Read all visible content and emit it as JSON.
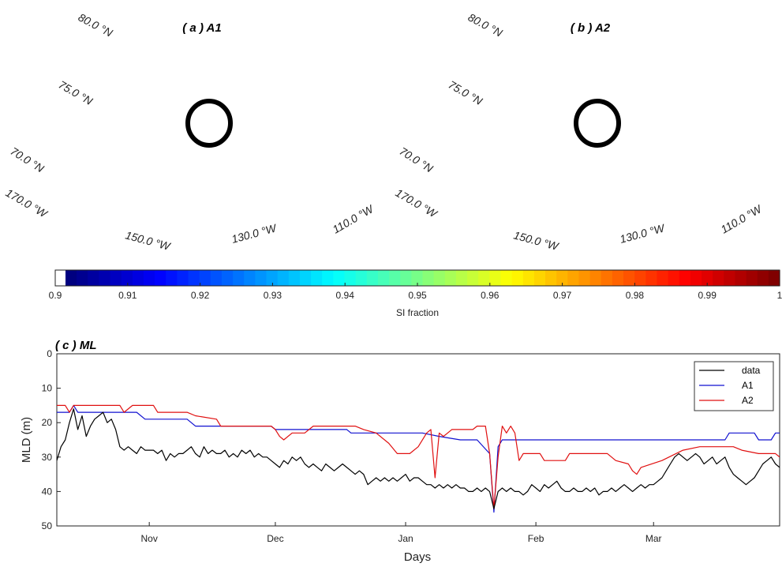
{
  "map_a": {
    "title": "( a ) A1",
    "lat_labels": [
      "80.0 °N",
      "75.0 °N",
      "70.0 °N"
    ],
    "lon_labels": [
      "170.0 °W",
      "150.0 °W",
      "130.0 °W",
      "110.0 °W"
    ]
  },
  "map_b": {
    "title": "( b ) A2",
    "lat_labels": [
      "80.0 °N",
      "75.0 °N",
      "70.0 °N"
    ],
    "lon_labels": [
      "170.0 °W",
      "150.0 °W",
      "130.0 °W",
      "110.0 °W"
    ]
  },
  "colorbar": {
    "label": "SI fraction",
    "range": [
      0.9,
      1.0
    ],
    "ticks": [
      "0.9",
      "0.91",
      "0.92",
      "0.93",
      "0.94",
      "0.95",
      "0.96",
      "0.97",
      "0.98",
      "0.99",
      "1"
    ],
    "colormap": "jet"
  },
  "chart_data": {
    "type": "line",
    "title": "( c ) ML",
    "xlabel": "Days",
    "ylabel": "MLD (m)",
    "ylim": [
      0,
      50
    ],
    "y_reversed": true,
    "yticks": [
      0,
      10,
      20,
      30,
      40,
      50
    ],
    "xticks": [
      "Nov",
      "Dec",
      "Jan",
      "Feb",
      "Mar"
    ],
    "xtick_days": [
      1,
      31,
      62,
      93,
      121
    ],
    "xlim_days": [
      -21,
      151
    ],
    "legend_position": "top-right",
    "series": [
      {
        "name": "data",
        "color": "#000000",
        "points": [
          [
            -21,
            31
          ],
          [
            -20,
            27
          ],
          [
            -19,
            25
          ],
          [
            -18,
            20
          ],
          [
            -17,
            16
          ],
          [
            -16,
            22
          ],
          [
            -15,
            18
          ],
          [
            -14,
            24
          ],
          [
            -13,
            21
          ],
          [
            -12,
            19
          ],
          [
            -11,
            18
          ],
          [
            -10,
            17
          ],
          [
            -9,
            20
          ],
          [
            -8,
            19
          ],
          [
            -7,
            22
          ],
          [
            -6,
            27
          ],
          [
            -5,
            28
          ],
          [
            -4,
            27
          ],
          [
            -3,
            28
          ],
          [
            -2,
            29
          ],
          [
            -1,
            27
          ],
          [
            0,
            28
          ],
          [
            1,
            28
          ],
          [
            2,
            28
          ],
          [
            3,
            29
          ],
          [
            4,
            28
          ],
          [
            5,
            31
          ],
          [
            6,
            29
          ],
          [
            7,
            30
          ],
          [
            8,
            29
          ],
          [
            9,
            29
          ],
          [
            10,
            28
          ],
          [
            11,
            27
          ],
          [
            12,
            29
          ],
          [
            13,
            30
          ],
          [
            14,
            27
          ],
          [
            15,
            29
          ],
          [
            16,
            28
          ],
          [
            17,
            29
          ],
          [
            18,
            29
          ],
          [
            19,
            28
          ],
          [
            20,
            30
          ],
          [
            21,
            29
          ],
          [
            22,
            30
          ],
          [
            23,
            28
          ],
          [
            24,
            29
          ],
          [
            25,
            28
          ],
          [
            26,
            30
          ],
          [
            27,
            29
          ],
          [
            28,
            30
          ],
          [
            29,
            30
          ],
          [
            30,
            31
          ],
          [
            31,
            32
          ],
          [
            32,
            33
          ],
          [
            33,
            31
          ],
          [
            34,
            32
          ],
          [
            35,
            30
          ],
          [
            36,
            31
          ],
          [
            37,
            30
          ],
          [
            38,
            32
          ],
          [
            39,
            33
          ],
          [
            40,
            32
          ],
          [
            41,
            33
          ],
          [
            42,
            34
          ],
          [
            43,
            32
          ],
          [
            44,
            33
          ],
          [
            45,
            34
          ],
          [
            46,
            33
          ],
          [
            47,
            32
          ],
          [
            48,
            33
          ],
          [
            49,
            34
          ],
          [
            50,
            35
          ],
          [
            51,
            34
          ],
          [
            52,
            35
          ],
          [
            53,
            38
          ],
          [
            54,
            37
          ],
          [
            55,
            36
          ],
          [
            56,
            37
          ],
          [
            57,
            36
          ],
          [
            58,
            37
          ],
          [
            59,
            36
          ],
          [
            60,
            37
          ],
          [
            61,
            36
          ],
          [
            62,
            35
          ],
          [
            63,
            37
          ],
          [
            64,
            36
          ],
          [
            65,
            36
          ],
          [
            66,
            37
          ],
          [
            67,
            38
          ],
          [
            68,
            38
          ],
          [
            69,
            39
          ],
          [
            70,
            38
          ],
          [
            71,
            39
          ],
          [
            72,
            38
          ],
          [
            73,
            39
          ],
          [
            74,
            38
          ],
          [
            75,
            39
          ],
          [
            76,
            39
          ],
          [
            77,
            40
          ],
          [
            78,
            40
          ],
          [
            79,
            39
          ],
          [
            80,
            40
          ],
          [
            81,
            39
          ],
          [
            82,
            40
          ],
          [
            83,
            45
          ],
          [
            84,
            40
          ],
          [
            85,
            39
          ],
          [
            86,
            40
          ],
          [
            87,
            39
          ],
          [
            88,
            40
          ],
          [
            89,
            40
          ],
          [
            90,
            41
          ],
          [
            91,
            40
          ],
          [
            92,
            38
          ],
          [
            93,
            39
          ],
          [
            94,
            40
          ],
          [
            95,
            38
          ],
          [
            96,
            39
          ],
          [
            97,
            38
          ],
          [
            98,
            37
          ],
          [
            99,
            39
          ],
          [
            100,
            40
          ],
          [
            101,
            40
          ],
          [
            102,
            39
          ],
          [
            103,
            40
          ],
          [
            104,
            40
          ],
          [
            105,
            39
          ],
          [
            106,
            40
          ],
          [
            107,
            39
          ],
          [
            108,
            41
          ],
          [
            109,
            40
          ],
          [
            110,
            40
          ],
          [
            111,
            39
          ],
          [
            112,
            40
          ],
          [
            113,
            39
          ],
          [
            114,
            38
          ],
          [
            115,
            39
          ],
          [
            116,
            40
          ],
          [
            117,
            39
          ],
          [
            118,
            38
          ],
          [
            119,
            39
          ],
          [
            120,
            38
          ],
          [
            121,
            38
          ],
          [
            122,
            37
          ],
          [
            123,
            36
          ],
          [
            124,
            34
          ],
          [
            125,
            32
          ],
          [
            126,
            30
          ],
          [
            127,
            29
          ],
          [
            128,
            30
          ],
          [
            129,
            31
          ],
          [
            130,
            30
          ],
          [
            131,
            29
          ],
          [
            132,
            30
          ],
          [
            133,
            32
          ],
          [
            134,
            31
          ],
          [
            135,
            30
          ],
          [
            136,
            32
          ],
          [
            137,
            31
          ],
          [
            138,
            30
          ],
          [
            139,
            33
          ],
          [
            140,
            35
          ],
          [
            141,
            36
          ],
          [
            142,
            37
          ],
          [
            143,
            38
          ],
          [
            144,
            37
          ],
          [
            145,
            36
          ],
          [
            146,
            34
          ],
          [
            147,
            32
          ],
          [
            148,
            31
          ],
          [
            149,
            30
          ],
          [
            150,
            32
          ],
          [
            151,
            33
          ]
        ]
      },
      {
        "name": "A1",
        "color": "#1010d0",
        "points": [
          [
            -21,
            17
          ],
          [
            -18,
            17
          ],
          [
            -17,
            15
          ],
          [
            -16,
            17
          ],
          [
            -2,
            17
          ],
          [
            0,
            19
          ],
          [
            10,
            19
          ],
          [
            12,
            21
          ],
          [
            30,
            21
          ],
          [
            31,
            22
          ],
          [
            48,
            22
          ],
          [
            49,
            23
          ],
          [
            66,
            23
          ],
          [
            70,
            24
          ],
          [
            75,
            25
          ],
          [
            79,
            25
          ],
          [
            82,
            29
          ],
          [
            83,
            46
          ],
          [
            84,
            27
          ],
          [
            85,
            25
          ],
          [
            138,
            25
          ],
          [
            139,
            23
          ],
          [
            145,
            23
          ],
          [
            146,
            25
          ],
          [
            149,
            25
          ],
          [
            150,
            23
          ],
          [
            151,
            23
          ]
        ]
      },
      {
        "name": "A2",
        "color": "#e01010",
        "points": [
          [
            -21,
            15
          ],
          [
            -19,
            15
          ],
          [
            -18,
            17
          ],
          [
            -17,
            15
          ],
          [
            -6,
            15
          ],
          [
            -5,
            17
          ],
          [
            -3,
            15
          ],
          [
            2,
            15
          ],
          [
            3,
            17
          ],
          [
            10,
            17
          ],
          [
            12,
            18
          ],
          [
            17,
            19
          ],
          [
            18,
            21
          ],
          [
            30,
            21
          ],
          [
            31,
            22
          ],
          [
            32,
            24
          ],
          [
            33,
            25
          ],
          [
            35,
            23
          ],
          [
            38,
            23
          ],
          [
            40,
            21
          ],
          [
            50,
            21
          ],
          [
            52,
            22
          ],
          [
            55,
            23
          ],
          [
            58,
            26
          ],
          [
            60,
            29
          ],
          [
            63,
            29
          ],
          [
            65,
            27
          ],
          [
            67,
            23
          ],
          [
            68,
            22
          ],
          [
            69,
            36
          ],
          [
            70,
            23
          ],
          [
            71,
            24
          ],
          [
            72,
            23
          ],
          [
            73,
            22
          ],
          [
            78,
            22
          ],
          [
            79,
            21
          ],
          [
            81,
            21
          ],
          [
            82,
            29
          ],
          [
            83,
            45
          ],
          [
            84,
            30
          ],
          [
            85,
            21
          ],
          [
            86,
            23
          ],
          [
            87,
            21
          ],
          [
            88,
            23
          ],
          [
            89,
            31
          ],
          [
            90,
            29
          ],
          [
            94,
            29
          ],
          [
            95,
            31
          ],
          [
            100,
            31
          ],
          [
            101,
            29
          ],
          [
            110,
            29
          ],
          [
            112,
            31
          ],
          [
            115,
            32
          ],
          [
            116,
            34
          ],
          [
            117,
            35
          ],
          [
            118,
            33
          ],
          [
            123,
            31
          ],
          [
            128,
            28
          ],
          [
            132,
            27
          ],
          [
            140,
            27
          ],
          [
            142,
            28
          ],
          [
            146,
            29
          ],
          [
            150,
            29
          ],
          [
            151,
            30
          ]
        ]
      }
    ]
  }
}
